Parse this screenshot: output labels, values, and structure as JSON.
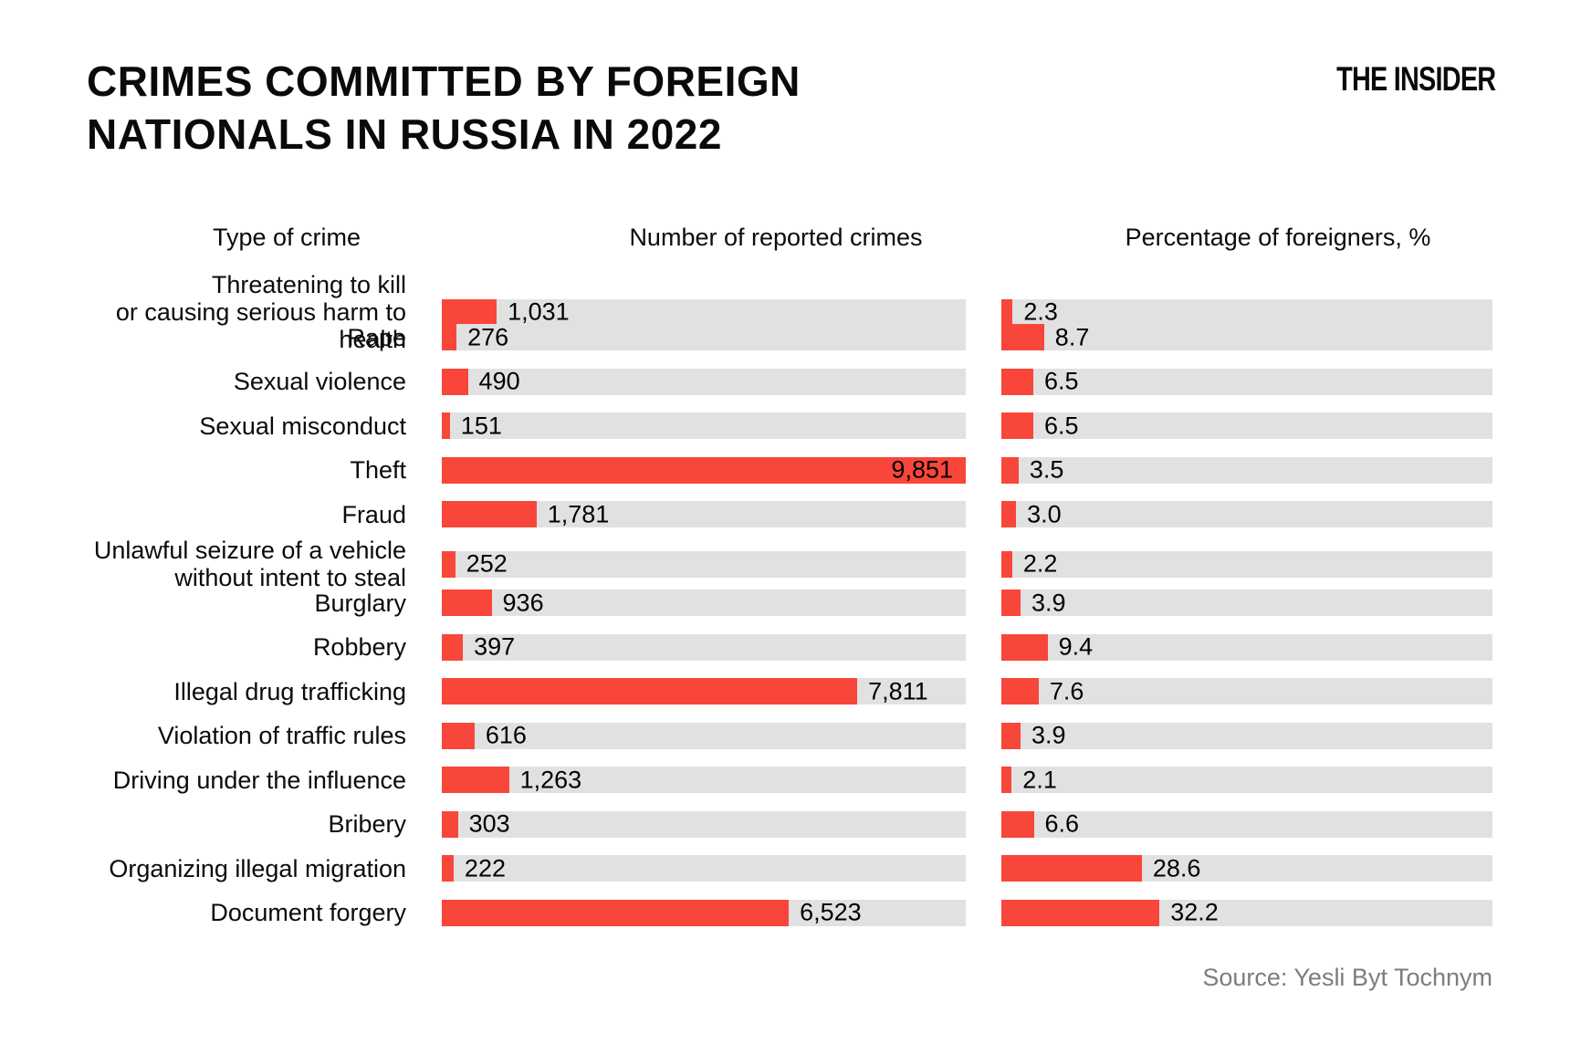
{
  "title": {
    "line1": "CRIMES COMMITTED BY FOREIGN",
    "line2": "NATIONALS IN RUSSIA IN 2022"
  },
  "logo_text": "THE INSIDER",
  "source_caption": "Source: Yesli Byt Tochnym",
  "columns": {
    "type_header": "Type of crime",
    "count_header": "Number of reported crimes",
    "percent_header": "Percentage of foreigners, %"
  },
  "colors": {
    "accent_red": "#f9463a",
    "track_gray": "#e1e1e1",
    "source_gray": "#7d7d7d"
  },
  "chart_data": {
    "type": "bar",
    "orientation": "horizontal",
    "title": "Crimes committed by foreign nationals in Russia in 2022",
    "grid": false,
    "legend": false,
    "categories": [
      "Threatening to kill\nor causing serious harm to health",
      "Rape",
      "Sexual violence",
      "Sexual misconduct",
      "Theft",
      "Fraud",
      "Unlawful seizure of a vehicle\nwithout intent to steal",
      "Burglary",
      "Robbery",
      "Illegal drug trafficking",
      "Violation of traffic rules",
      "Driving under the influence",
      "Bribery",
      "Organizing illegal migration",
      "Document forgery"
    ],
    "series": [
      {
        "name": "Number of reported crimes",
        "axis_max": 9851,
        "values": [
          1031,
          276,
          490,
          151,
          9851,
          1781,
          252,
          936,
          397,
          7811,
          616,
          1263,
          303,
          222,
          6523
        ],
        "value_labels": [
          "1,031",
          "276",
          "490",
          "151",
          "9,851",
          "1,781",
          "252",
          "936",
          "397",
          "7,811",
          "616",
          "1,263",
          "303",
          "222",
          "6,523"
        ]
      },
      {
        "name": "Percentage of foreigners, %",
        "axis_max": 100,
        "values": [
          2.3,
          8.7,
          6.5,
          6.5,
          3.5,
          3.0,
          2.2,
          3.9,
          9.4,
          7.6,
          3.9,
          2.1,
          6.6,
          28.6,
          32.2
        ],
        "value_labels": [
          "2.3",
          "8.7",
          "6.5",
          "6.5",
          "3.5",
          "3.0",
          "2.2",
          "3.9",
          "9.4",
          "7.6",
          "3.9",
          "2.1",
          "6.6",
          "28.6",
          "32.2"
        ]
      }
    ]
  }
}
